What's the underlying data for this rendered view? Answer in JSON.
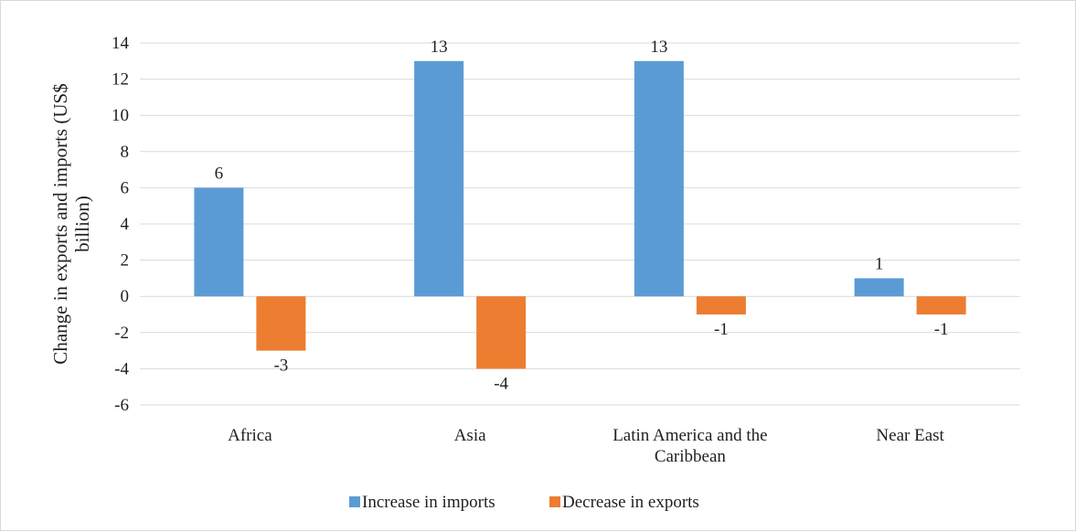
{
  "chart_data": {
    "type": "bar",
    "categories": [
      "Africa",
      "Asia",
      "Latin America and the Caribbean",
      "Near East"
    ],
    "category_lines": [
      [
        "Africa"
      ],
      [
        "Asia"
      ],
      [
        "Latin America and the",
        "Caribbean"
      ],
      [
        "Near East"
      ]
    ],
    "series": [
      {
        "name": "Increase in imports",
        "color": "#5b9bd5",
        "values": [
          6,
          13,
          13,
          1
        ]
      },
      {
        "name": "Decrease in exports",
        "color": "#ed7d31",
        "values": [
          -3,
          -4,
          -1,
          -1
        ]
      }
    ],
    "ylabel_lines": [
      "Change in exports and imports (US$",
      "billion)"
    ],
    "ylim": [
      -6,
      14
    ],
    "yticks": [
      -6,
      -4,
      -2,
      0,
      2,
      4,
      6,
      8,
      10,
      12,
      14
    ],
    "grid": true,
    "legend_position": "bottom",
    "data_labels": true
  }
}
